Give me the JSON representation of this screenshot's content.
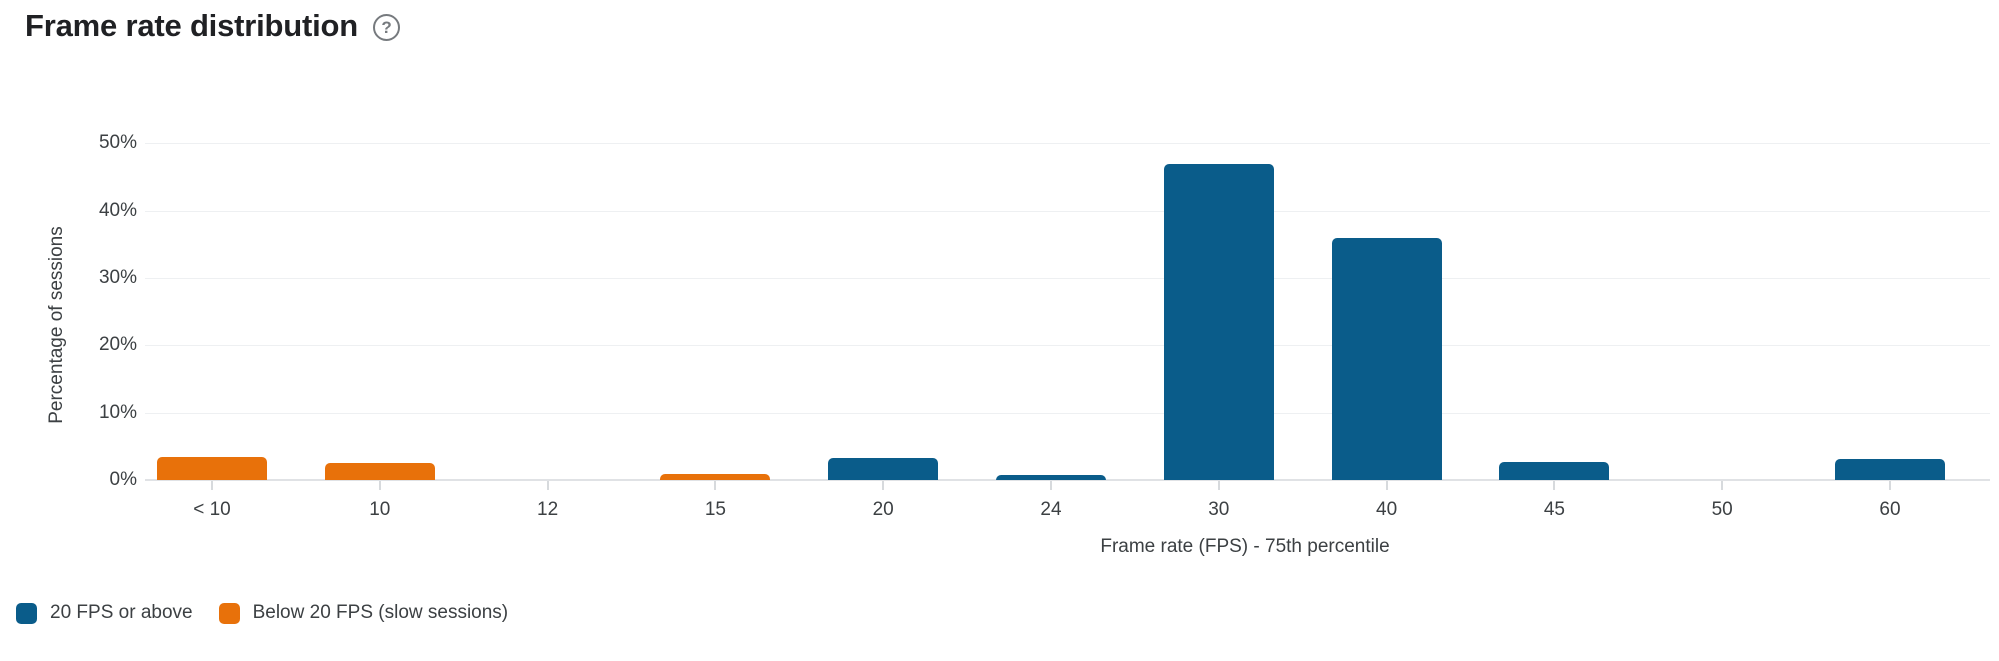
{
  "header": {
    "title": "Frame rate distribution",
    "help_icon_glyph": "?"
  },
  "colors": {
    "blue": "#0a5c8a",
    "orange": "#e8710a",
    "gridline": "#eef0f2",
    "axis_line": "#e0e2e5",
    "label_text": "#3c4043",
    "title_text": "#202124"
  },
  "chart_data": {
    "type": "bar",
    "title": "Frame rate distribution",
    "xlabel": "Frame rate (FPS) - 75th percentile",
    "ylabel": "Percentage of sessions",
    "ylim": [
      0,
      50
    ],
    "ytick_labels": [
      "0%",
      "10%",
      "20%",
      "30%",
      "40%",
      "50%"
    ],
    "grid": true,
    "legend_position": "bottom-left",
    "categories": [
      "< 10",
      "10",
      "12",
      "15",
      "20",
      "24",
      "30",
      "40",
      "45",
      "50",
      "60"
    ],
    "series": [
      {
        "name": "20 FPS or above",
        "color": "#0a5c8a",
        "values": [
          0,
          0,
          0,
          0,
          3.2,
          0.7,
          47,
          36,
          2.7,
          0,
          3.1
        ]
      },
      {
        "name": "Below 20 FPS (slow sessions)",
        "color": "#e8710a",
        "values": [
          3.4,
          2.5,
          0,
          0.9,
          0,
          0,
          0,
          0,
          0,
          0,
          0
        ]
      }
    ]
  }
}
